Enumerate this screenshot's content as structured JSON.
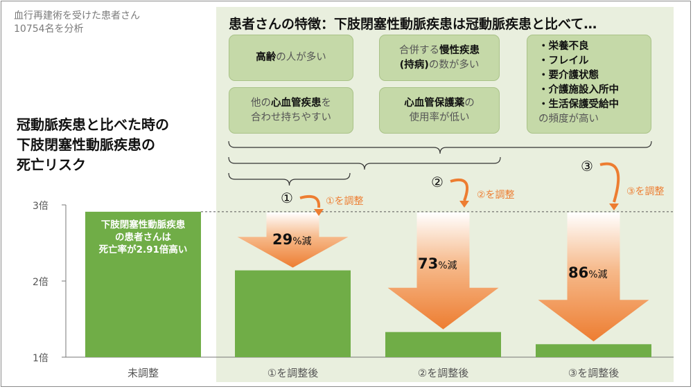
{
  "note": {
    "line1": "血行再建術を受けた患者さん",
    "line2": "10754名を分析"
  },
  "traits": {
    "headline": "患者さんの特徴：下肢閉塞性動脈疾患は冠動脈疾患と比べて…",
    "box1": {
      "em": "高齢",
      "rest": "の人が多い"
    },
    "box2": {
      "line1_pre": "合併する",
      "line1_em": "慢性疾患",
      "line2_em": "(持病)",
      "line2_rest": "の数が多い"
    },
    "box3": {
      "line1_pre": "他の",
      "line1_em": "心血管疾患",
      "line1_post": "を",
      "line2": "合わせ持ちやすい"
    },
    "box4": {
      "line1_em": "心血管保護薬",
      "line1_post": "の",
      "line2": "使用率が低い"
    },
    "box5": {
      "items": [
        "・栄養不良",
        "・フレイル",
        "・要介護状態",
        "・介護施設入所中",
        "・生活保護受給中"
      ],
      "tail": "の頻度が高い"
    }
  },
  "brace_labels": [
    "①",
    "②",
    "③"
  ],
  "adjust_labels": [
    "①を調整",
    "②を調整",
    "③を調整"
  ],
  "chart_data": {
    "type": "bar",
    "title_lines": [
      "冠動脈疾患と比べた時の",
      "下肢閉塞性動脈疾患の",
      "死亡リスク"
    ],
    "categories": [
      "未調整",
      "①を調整後",
      "②を調整後",
      "③を調整後"
    ],
    "values": [
      2.91,
      2.14,
      1.33,
      1.17
    ],
    "ylim": [
      1,
      3
    ],
    "yticks": [
      "1倍",
      "2倍",
      "3倍"
    ],
    "reference_line": 2.91,
    "bar_color": "#70ad47",
    "arrow_color": "#ed7d31",
    "annotations": {
      "unadjusted": [
        "下肢閉塞性動脈疾患",
        "の患者さんは",
        "死亡率が2.91倍高い"
      ],
      "reductions": [
        {
          "number": "29",
          "unit": "%減"
        },
        {
          "number": "73",
          "unit": "%減"
        },
        {
          "number": "86",
          "unit": "%減"
        }
      ]
    }
  }
}
